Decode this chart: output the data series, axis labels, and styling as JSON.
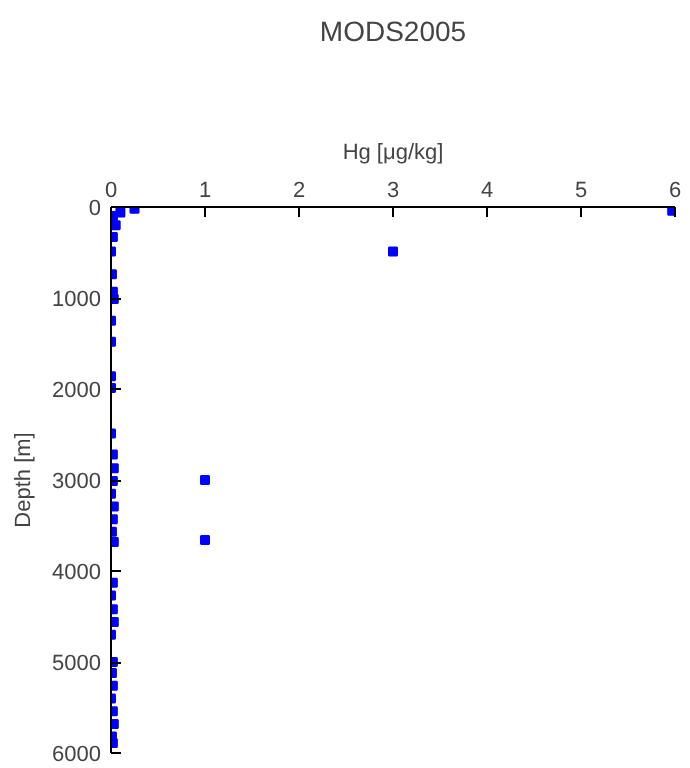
{
  "chart_data": {
    "type": "scatter",
    "title": "MODS2005",
    "xlabel": "Hg [μg/kg]",
    "ylabel": "Depth [m]",
    "xlim": [
      0,
      6
    ],
    "ylim": [
      6000,
      0
    ],
    "xticks": [
      0,
      1,
      2,
      3,
      4,
      5,
      6
    ],
    "yticks": [
      0,
      1000,
      2000,
      3000,
      4000,
      5000,
      6000
    ],
    "grid": false,
    "marker": "square",
    "series": [
      {
        "color": "#0000ff",
        "x": [
          0.25,
          0.1,
          0.02,
          0.05,
          0.02,
          0.0,
          0.01,
          0.02,
          0.03,
          0.0,
          0.0,
          0.0,
          0.0,
          0.0,
          0.02,
          0.03,
          0.02,
          0.0,
          0.03,
          0.02,
          0.01,
          0.03,
          0.02,
          0.0,
          0.02,
          0.03,
          0.01,
          0.02,
          0.0,
          0.02,
          0.03,
          0.01,
          0.02,
          0.0,
          0.02,
          5.97,
          3,
          1,
          1
        ],
        "values": [
          20,
          60,
          100,
          200,
          330,
          490,
          740,
          930,
          1010,
          1250,
          1480,
          1860,
          1990,
          2490,
          2720,
          2870,
          3010,
          3150,
          3290,
          3430,
          3570,
          3680,
          4130,
          4270,
          4420,
          4560,
          5120,
          5260,
          5400,
          5540,
          5680,
          5820,
          5890,
          4700,
          5000,
          40,
          490,
          3000,
          3660
        ]
      }
    ]
  }
}
